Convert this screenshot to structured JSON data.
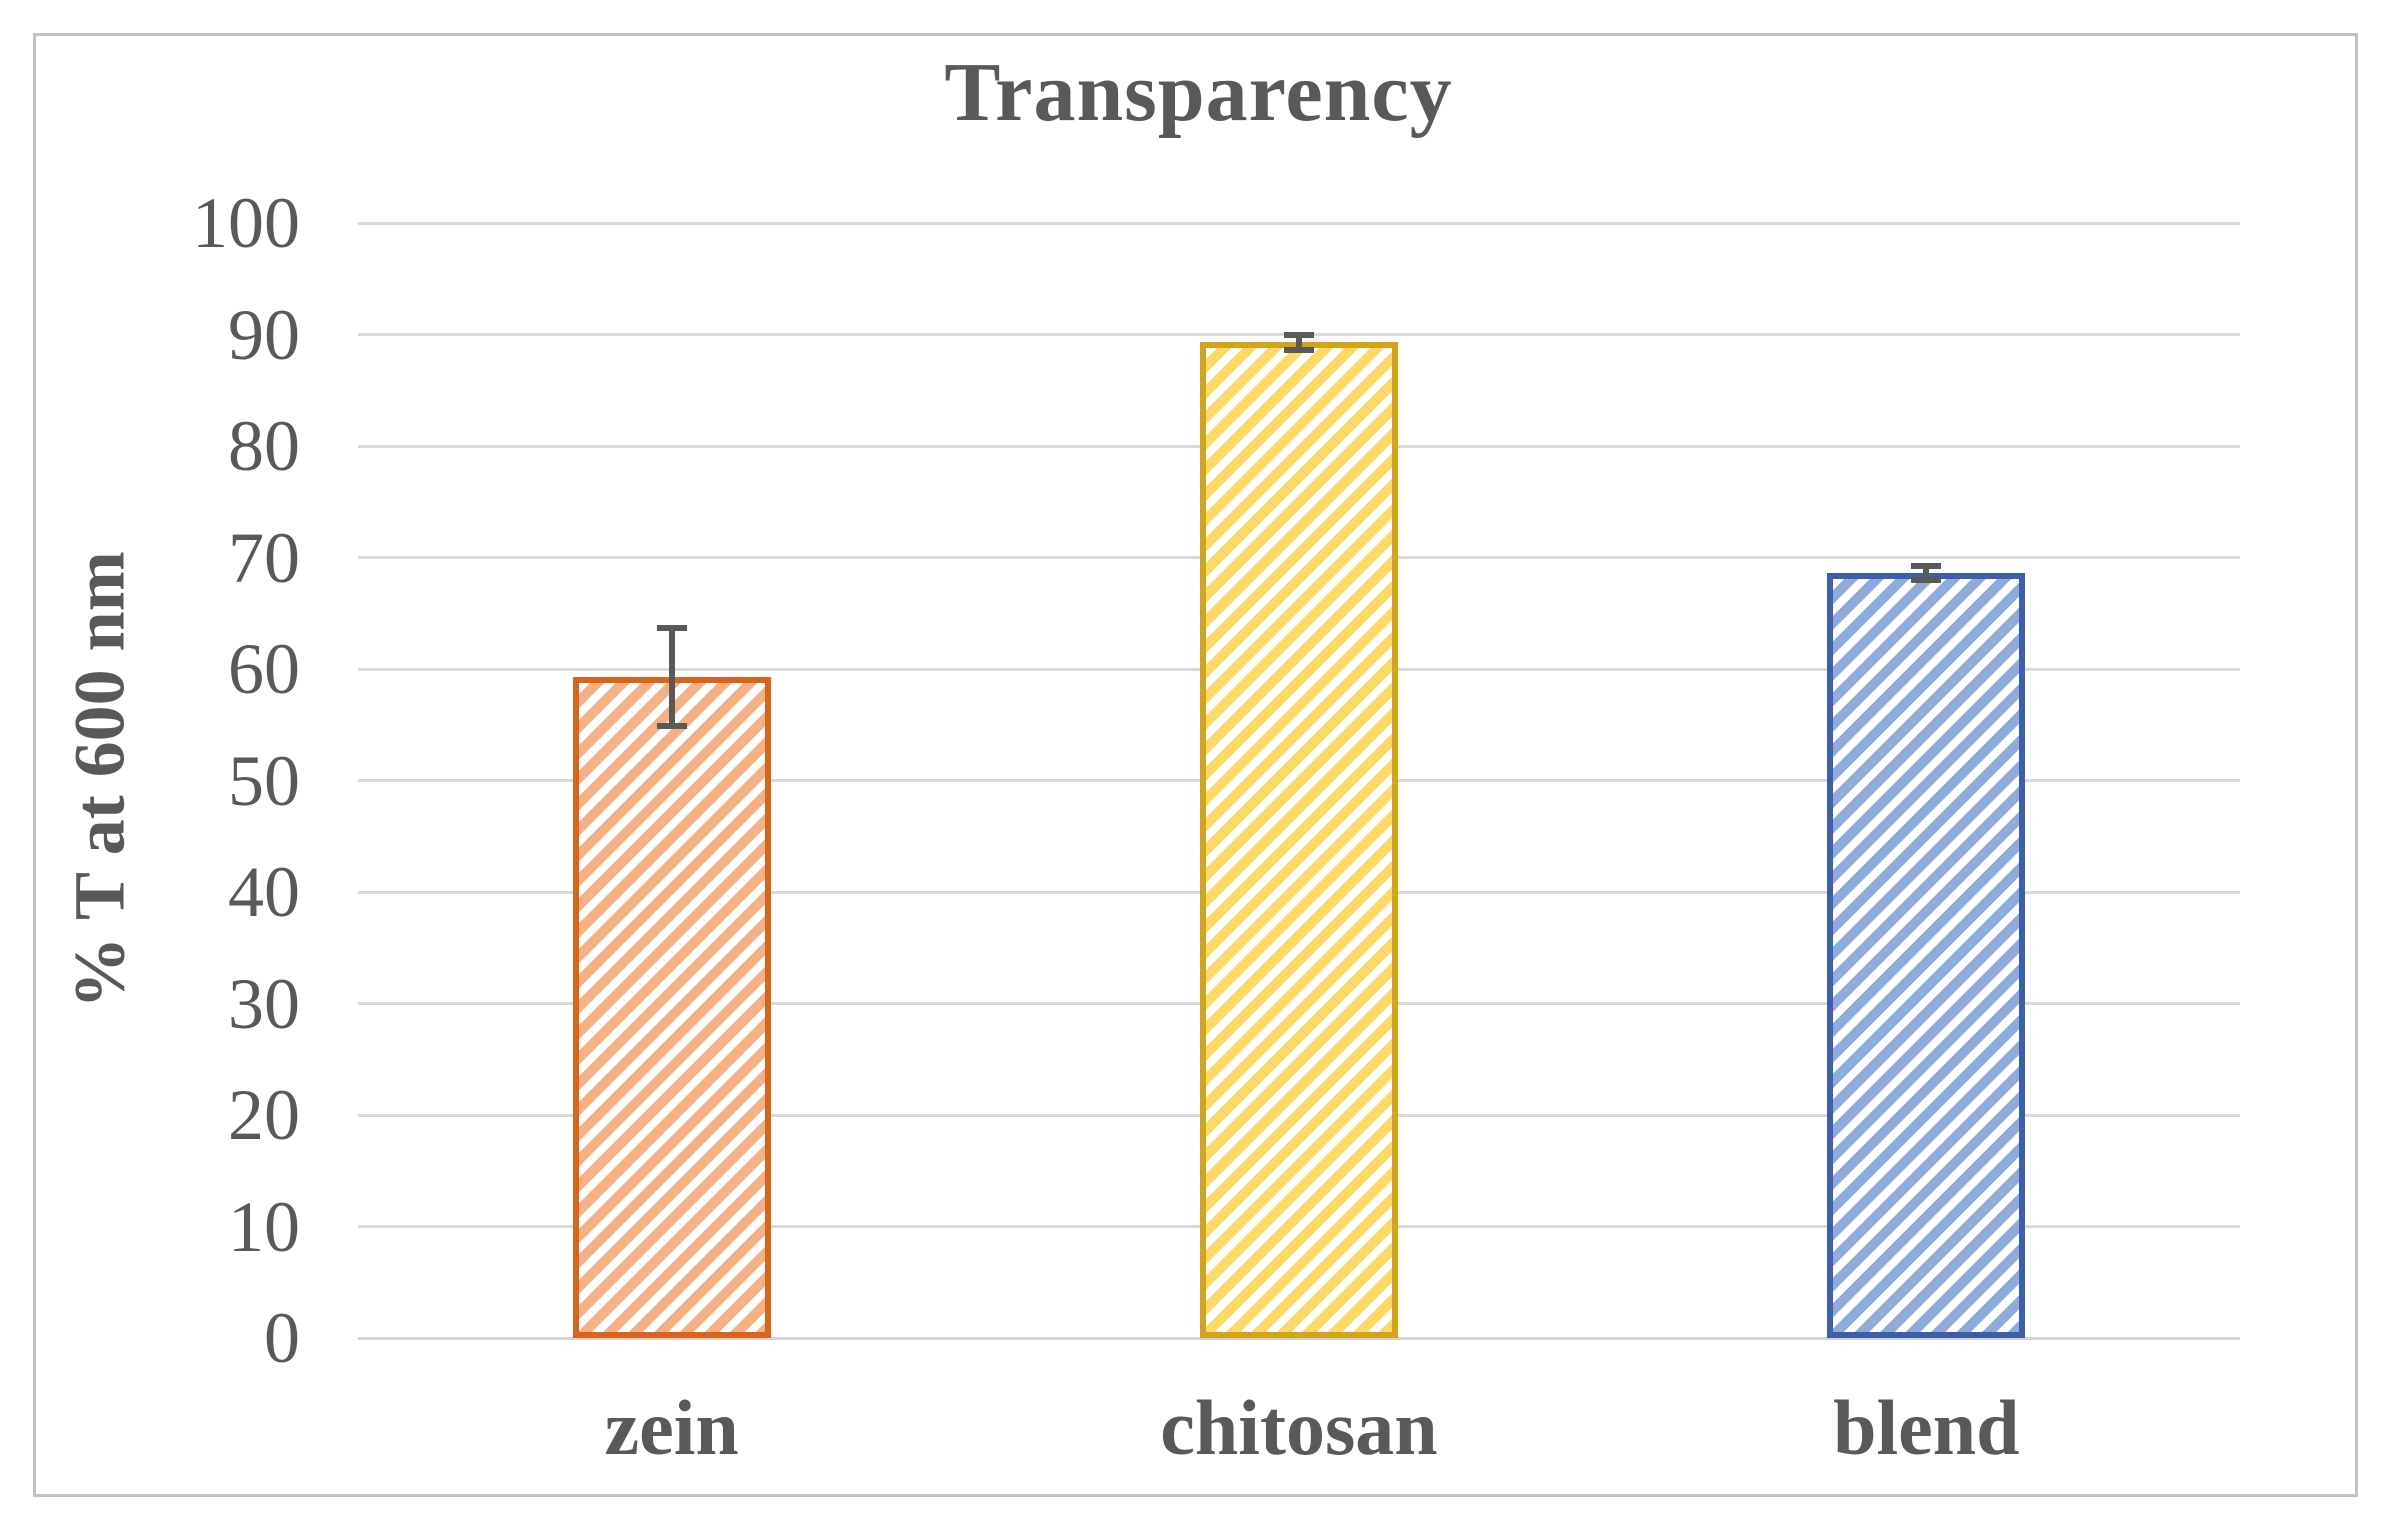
{
  "chart_data": {
    "type": "bar",
    "title": "Transparency",
    "ylabel": "% T at 600 nm",
    "xlabel": "",
    "categories": [
      "zein",
      "chitosan",
      "blend"
    ],
    "values": [
      59.3,
      89.3,
      68.6
    ],
    "errors": [
      4.4,
      0.7,
      0.6
    ],
    "ylim": [
      0,
      100
    ],
    "yticks": [
      0,
      10,
      20,
      30,
      40,
      50,
      60,
      70,
      80,
      90,
      100
    ],
    "grid": true,
    "legend": false,
    "bar_styles": [
      {
        "name": "zein",
        "edge_color": "#D9651C",
        "hatch_color": "#F5B183",
        "hatch": "diagonal-stripes"
      },
      {
        "name": "chitosan",
        "edge_color": "#D2A41B",
        "hatch_color": "#FFD966",
        "hatch": "diagonal-stripes"
      },
      {
        "name": "blend",
        "edge_color": "#3D5EA9",
        "hatch_color": "#8FAADC",
        "hatch": "diagonal-stripes"
      }
    ],
    "colors": {
      "text": "#595959",
      "gridline": "#D9D9D9",
      "axis_line": "#D4D4D4",
      "error_bar": "#595959",
      "frame_border": "#C2C2C2",
      "background": "#FFFFFF"
    }
  }
}
